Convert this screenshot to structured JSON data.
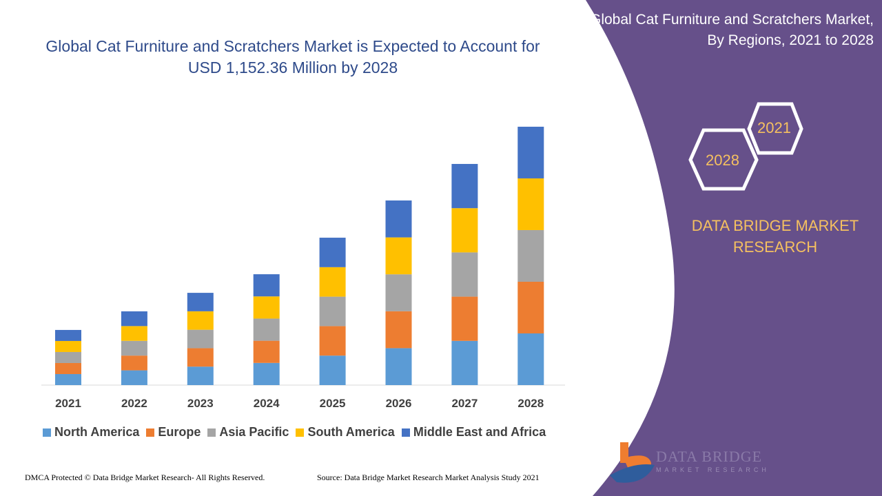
{
  "title": "Global Cat Furniture and Scratchers Market is Expected to Account for USD 1,152.36 Million by 2028",
  "side_panel": {
    "title": "Global Cat Furniture and Scratchers Market, By Regions, 2021 to 2028",
    "hex_years": [
      "2021",
      "2028"
    ],
    "brand": "DATA BRIDGE MARKET RESEARCH",
    "logo_text": "DATA BRIDGE",
    "logo_subtext": "MARKET RESEARCH"
  },
  "footer": {
    "left": "DMCA Protected © Data Bridge Market Research- All Rights Reserved.",
    "right": "Source: Data Bridge Market Research Market Analysis Study 2021"
  },
  "colors": {
    "panel": "#66508a",
    "title": "#2e4a8a",
    "accent": "#f5c060"
  },
  "chart_data": {
    "type": "bar",
    "stacked": true,
    "title": "Global Cat Furniture and Scratchers Market is Expected to Account for USD 1,152.36 Million by 2028",
    "categories": [
      "2021",
      "2022",
      "2023",
      "2024",
      "2025",
      "2026",
      "2027",
      "2028"
    ],
    "legend_position": "bottom",
    "grid": false,
    "series": [
      {
        "name": "North America",
        "color": "#5b9bd5",
        "values": [
          49.2,
          65.8,
          82.3,
          98.9,
          131.5,
          164.7,
          197.3,
          230.5
        ]
      },
      {
        "name": "Europe",
        "color": "#ed7d31",
        "values": [
          49.2,
          65.8,
          82.3,
          98.9,
          131.5,
          164.7,
          197.3,
          230.5
        ]
      },
      {
        "name": "Asia Pacific",
        "color": "#a5a5a5",
        "values": [
          49.2,
          65.8,
          82.3,
          98.9,
          131.5,
          164.7,
          197.3,
          230.5
        ]
      },
      {
        "name": "South America",
        "color": "#ffc000",
        "values": [
          49.2,
          65.8,
          82.3,
          98.9,
          131.5,
          164.7,
          197.3,
          230.5
        ]
      },
      {
        "name": "Middle East and Africa",
        "color": "#4472c4",
        "values": [
          49.2,
          65.8,
          82.3,
          98.9,
          131.5,
          164.7,
          197.3,
          230.5
        ]
      }
    ]
  }
}
